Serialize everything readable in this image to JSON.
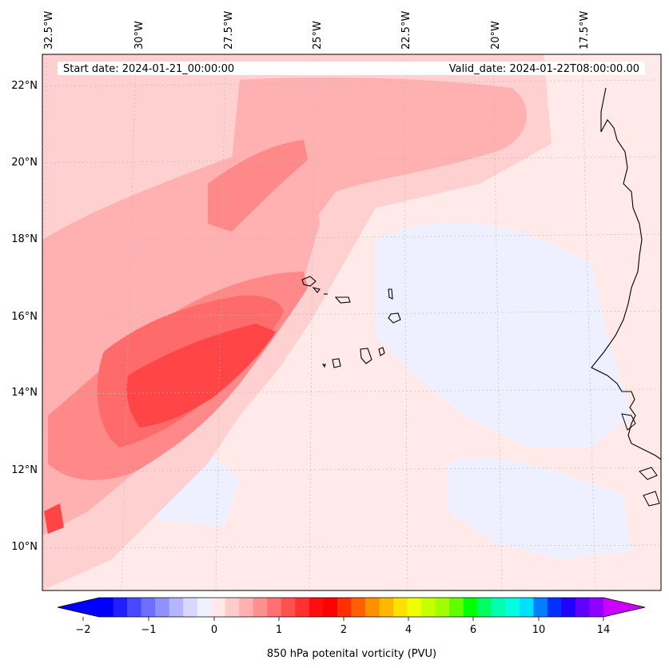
{
  "map": {
    "start_date_text": "Start date: 2024-01-21_00:00:00",
    "valid_date_text": "Valid_date: 2024-01-22T08:00:00.00",
    "lon_labels": [
      "32.5°W",
      "30°W",
      "27.5°W",
      "25°W",
      "22.5°W",
      "20°W",
      "17.5°W"
    ],
    "lat_labels": [
      "22°N",
      "20°N",
      "18°N",
      "16°N",
      "14°N",
      "12°N",
      "10°N"
    ],
    "colorbar": {
      "label": "850 hPa potenital vorticity (PVU)",
      "tick_labels": [
        "−2",
        "−1",
        "0",
        "1",
        "2",
        "4",
        "6",
        "10",
        "14"
      ],
      "colors": [
        "#0000ff",
        "#2020ff",
        "#4848ff",
        "#6e6eff",
        "#9090ff",
        "#b4b4ff",
        "#d8d8ff",
        "#f0f0ff",
        "#ffe8e8",
        "#ffcccc",
        "#ffb0b0",
        "#ff9090",
        "#ff7070",
        "#ff5050",
        "#ff3030",
        "#ff1010",
        "#ff0000",
        "#ff3000",
        "#ff6000",
        "#ff9000",
        "#ffb800",
        "#ffe000",
        "#f0ff00",
        "#c8ff00",
        "#a0ff00",
        "#60ff00",
        "#00ff00",
        "#00ff60",
        "#00ffb0",
        "#00ffe0",
        "#00e0ff",
        "#0080ff",
        "#0030ff",
        "#2000ff",
        "#6000ff",
        "#9000ff"
      ],
      "low_extend_color": "#0000ff",
      "high_extend_color": "#cc00ff"
    },
    "field_colors": {
      "background": "#ffe9e9",
      "negative": "#eef0ff",
      "negative_strong": "#c6cbff",
      "light": "#ffd0d0",
      "medium": "#ffb0b0",
      "strong": "#ff8888",
      "stronger": "#ff6a6a",
      "max": "#ff4545"
    }
  }
}
